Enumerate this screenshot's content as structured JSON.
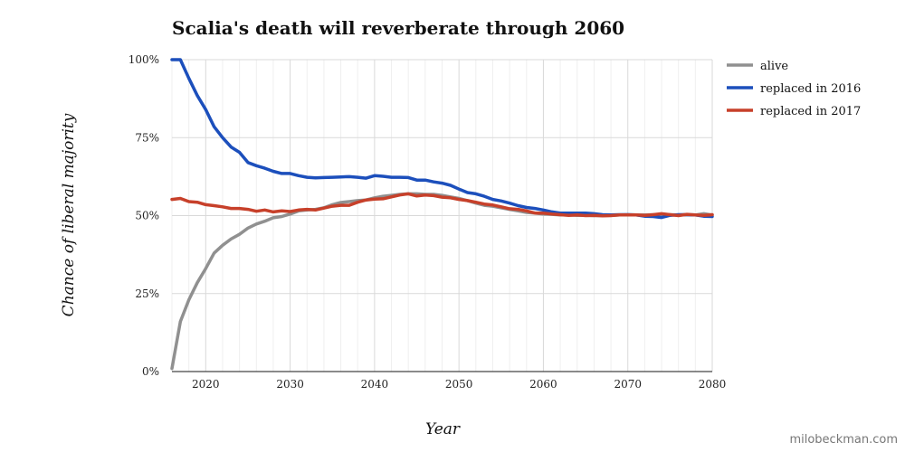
{
  "chart_data": {
    "type": "line",
    "title": "Scalia's death will reverberate through 2060",
    "xlabel": "Year",
    "ylabel": "Chance of liberal majority",
    "credit": "milobeckman.com",
    "xlim": [
      2016,
      2080
    ],
    "ylim": [
      0,
      100
    ],
    "x_ticks": [
      2020,
      2030,
      2040,
      2050,
      2060,
      2070,
      2080
    ],
    "y_ticks": [
      0,
      25,
      50,
      75,
      100
    ],
    "y_tick_labels": [
      "0%",
      "25%",
      "50%",
      "75%",
      "100%"
    ],
    "x_grid_step": 2,
    "grid": true,
    "legend_position": "right",
    "colors": {
      "alive": "#909090",
      "replaced in 2016": "#1c4fbc",
      "replaced in 2017": "#c7402a",
      "grid": "#d9d9d9",
      "axis": "#444444"
    },
    "series": [
      {
        "name": "alive",
        "color": "#909090",
        "x": [
          2016,
          2017,
          2018,
          2019,
          2020,
          2021,
          2022,
          2023,
          2024,
          2025,
          2026,
          2027,
          2028,
          2029,
          2030,
          2031,
          2032,
          2033,
          2034,
          2035,
          2036,
          2037,
          2038,
          2039,
          2040,
          2041,
          2042,
          2043,
          2044,
          2045,
          2046,
          2047,
          2048,
          2049,
          2050,
          2051,
          2052,
          2053,
          2054,
          2055,
          2056,
          2057,
          2058,
          2059,
          2060,
          2061,
          2062,
          2063,
          2064,
          2065,
          2066,
          2067,
          2068,
          2069,
          2070,
          2071,
          2072,
          2073,
          2074,
          2075,
          2076,
          2077,
          2078,
          2079,
          2080
        ],
        "values": [
          1,
          16,
          23,
          28.5,
          33,
          38,
          40.5,
          42.5,
          44,
          46,
          47.3,
          48.2,
          49.3,
          49.7,
          50.5,
          51.5,
          51.8,
          52,
          52.5,
          53.5,
          54.2,
          54.5,
          54.8,
          55,
          55.7,
          56.2,
          56.5,
          56.8,
          57,
          57,
          56.8,
          56.8,
          56.5,
          56,
          55.5,
          54.8,
          54,
          53.3,
          53,
          52.5,
          52,
          51.5,
          51,
          50.8,
          50.5,
          50.4,
          50.2,
          50.2,
          50.1,
          50.1,
          50,
          50,
          50.1,
          50.2,
          50.3,
          50.2,
          50.2,
          50.3,
          50.4,
          50.3,
          50.2,
          50.3,
          50.2,
          50.6,
          50.2
        ]
      },
      {
        "name": "replaced in 2016",
        "color": "#1c4fbc",
        "x": [
          2016,
          2017,
          2018,
          2019,
          2020,
          2021,
          2022,
          2023,
          2024,
          2025,
          2026,
          2027,
          2028,
          2029,
          2030,
          2031,
          2032,
          2033,
          2034,
          2035,
          2036,
          2037,
          2038,
          2039,
          2040,
          2041,
          2042,
          2043,
          2044,
          2045,
          2046,
          2047,
          2048,
          2049,
          2050,
          2051,
          2052,
          2053,
          2054,
          2055,
          2056,
          2057,
          2058,
          2059,
          2060,
          2061,
          2062,
          2063,
          2064,
          2065,
          2066,
          2067,
          2068,
          2069,
          2070,
          2071,
          2072,
          2073,
          2074,
          2075,
          2076,
          2077,
          2078,
          2079,
          2080
        ],
        "values": [
          100,
          100,
          94,
          88.5,
          84,
          78.5,
          75,
          72,
          70.3,
          67,
          66,
          65.2,
          64.2,
          63.5,
          63.5,
          62.8,
          62.3,
          62.1,
          62.2,
          62.3,
          62.4,
          62.5,
          62.3,
          62,
          62.8,
          62.6,
          62.3,
          62.3,
          62.2,
          61.4,
          61.4,
          60.8,
          60.4,
          59.7,
          58.5,
          57.4,
          57,
          56.2,
          55.2,
          54.7,
          54,
          53.2,
          52.6,
          52.3,
          51.8,
          51.2,
          50.8,
          50.8,
          50.8,
          50.8,
          50.6,
          50.3,
          50.2,
          50.3,
          50.3,
          50.2,
          49.8,
          49.7,
          49.4,
          50.1,
          50.3,
          50.3,
          50.2,
          49.8,
          49.7
        ]
      },
      {
        "name": "replaced in 2017",
        "color": "#c7402a",
        "x": [
          2016,
          2017,
          2018,
          2019,
          2020,
          2021,
          2022,
          2023,
          2024,
          2025,
          2026,
          2027,
          2028,
          2029,
          2030,
          2031,
          2032,
          2033,
          2034,
          2035,
          2036,
          2037,
          2038,
          2039,
          2040,
          2041,
          2042,
          2043,
          2044,
          2045,
          2046,
          2047,
          2048,
          2049,
          2050,
          2051,
          2052,
          2053,
          2054,
          2055,
          2056,
          2057,
          2058,
          2059,
          2060,
          2061,
          2062,
          2063,
          2064,
          2065,
          2066,
          2067,
          2068,
          2069,
          2070,
          2071,
          2072,
          2073,
          2074,
          2075,
          2076,
          2077,
          2078,
          2079,
          2080
        ],
        "values": [
          55.2,
          55.5,
          54.5,
          54.3,
          53.5,
          53.2,
          52.8,
          52.3,
          52.3,
          52,
          51.4,
          51.8,
          51.2,
          51.5,
          51.3,
          51.8,
          52,
          51.8,
          52.4,
          53,
          53.3,
          53.3,
          54.3,
          55,
          55.3,
          55.4,
          56,
          56.6,
          57,
          56.3,
          56.6,
          56.4,
          55.9,
          55.7,
          55.2,
          54.8,
          54.3,
          53.7,
          53.4,
          52.8,
          52.2,
          52,
          51.5,
          50.8,
          50.8,
          50.5,
          50.3,
          50.1,
          50.2,
          50,
          50.1,
          49.9,
          50,
          50.2,
          50.2,
          50.2,
          50.1,
          50.3,
          50.6,
          50.3,
          50,
          50.4,
          50.2,
          50.1,
          50.3
        ]
      }
    ]
  }
}
